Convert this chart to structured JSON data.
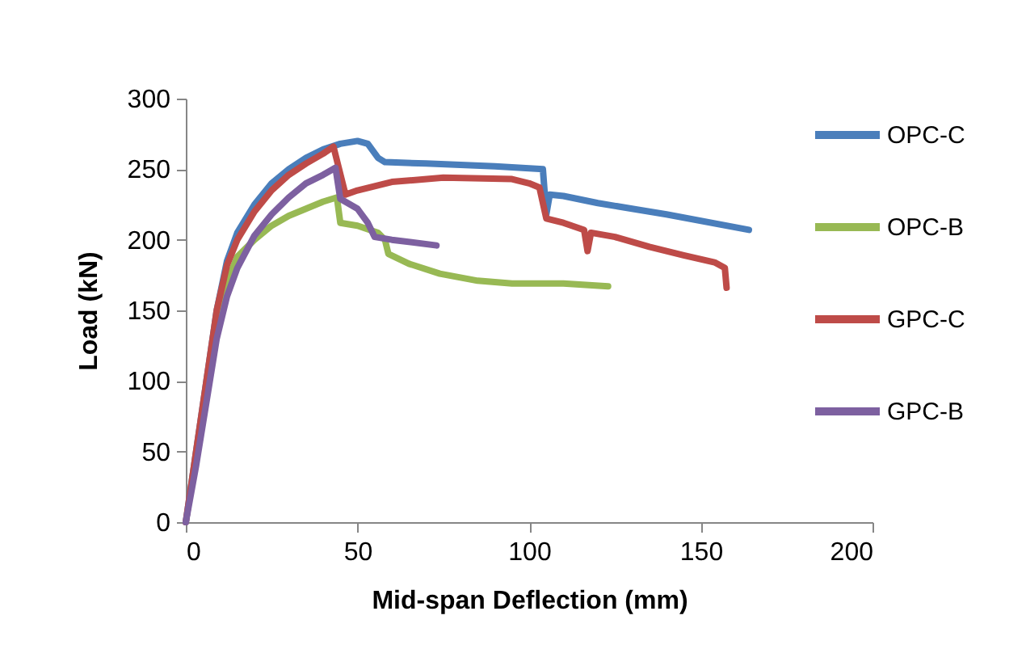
{
  "chart_data": {
    "type": "line",
    "xlabel": "Mid-span Deflection (mm)",
    "ylabel": "Load (kN)",
    "xlim": [
      0,
      200
    ],
    "ylim": [
      0,
      300
    ],
    "xticks": [
      0,
      50,
      100,
      150,
      200
    ],
    "yticks": [
      0,
      50,
      100,
      150,
      200,
      250,
      300
    ],
    "grid": false,
    "legend": "right",
    "marker": "none",
    "line_style": "solid",
    "series": [
      {
        "name": "OPC-C",
        "color": "#4a7ebb",
        "x": [
          0,
          3,
          6,
          9,
          12,
          15,
          20,
          25,
          30,
          35,
          40,
          45,
          50,
          53,
          56,
          58,
          70,
          90,
          104,
          105,
          106,
          110,
          120,
          140,
          164
        ],
        "values": [
          0,
          50,
          100,
          150,
          185,
          205,
          225,
          240,
          250,
          258,
          264,
          268,
          270,
          268,
          258,
          255,
          254,
          252,
          250,
          218,
          232,
          231,
          226,
          218,
          207
        ]
      },
      {
        "name": "OPC-B",
        "color": "#98b954",
        "x": [
          9,
          12,
          15,
          20,
          25,
          30,
          35,
          40,
          44,
          45,
          50,
          56,
          58,
          59,
          65,
          74,
          85,
          95,
          110,
          123
        ],
        "values": [
          140,
          170,
          188,
          200,
          210,
          217,
          222,
          227,
          230,
          212,
          210,
          205,
          200,
          190,
          183,
          176,
          171,
          169,
          169,
          167
        ]
      },
      {
        "name": "GPC-C",
        "color": "#be4b48",
        "x": [
          0,
          3,
          6,
          9,
          12,
          15,
          20,
          25,
          30,
          35,
          40,
          43,
          46.5,
          50,
          60,
          75,
          95,
          100,
          103,
          105,
          110,
          116,
          117,
          118,
          125,
          135,
          145,
          154,
          157,
          157.5
        ],
        "values": [
          0,
          50,
          100,
          150,
          182,
          200,
          220,
          235,
          246,
          254,
          261,
          266,
          232,
          235,
          241,
          244,
          243,
          240,
          237,
          215,
          212,
          207,
          192,
          205,
          202,
          195,
          189,
          184,
          180,
          166
        ]
      },
      {
        "name": "GPC-B",
        "color": "#7d60a0",
        "x": [
          0,
          3,
          6,
          9,
          12,
          15,
          20,
          25,
          30,
          35,
          40,
          43.6,
          45,
          50,
          53,
          55,
          60,
          73
        ],
        "values": [
          0,
          40,
          85,
          130,
          160,
          180,
          203,
          218,
          230,
          240,
          246,
          251,
          229,
          222,
          212,
          202,
          200,
          196
        ]
      }
    ]
  }
}
